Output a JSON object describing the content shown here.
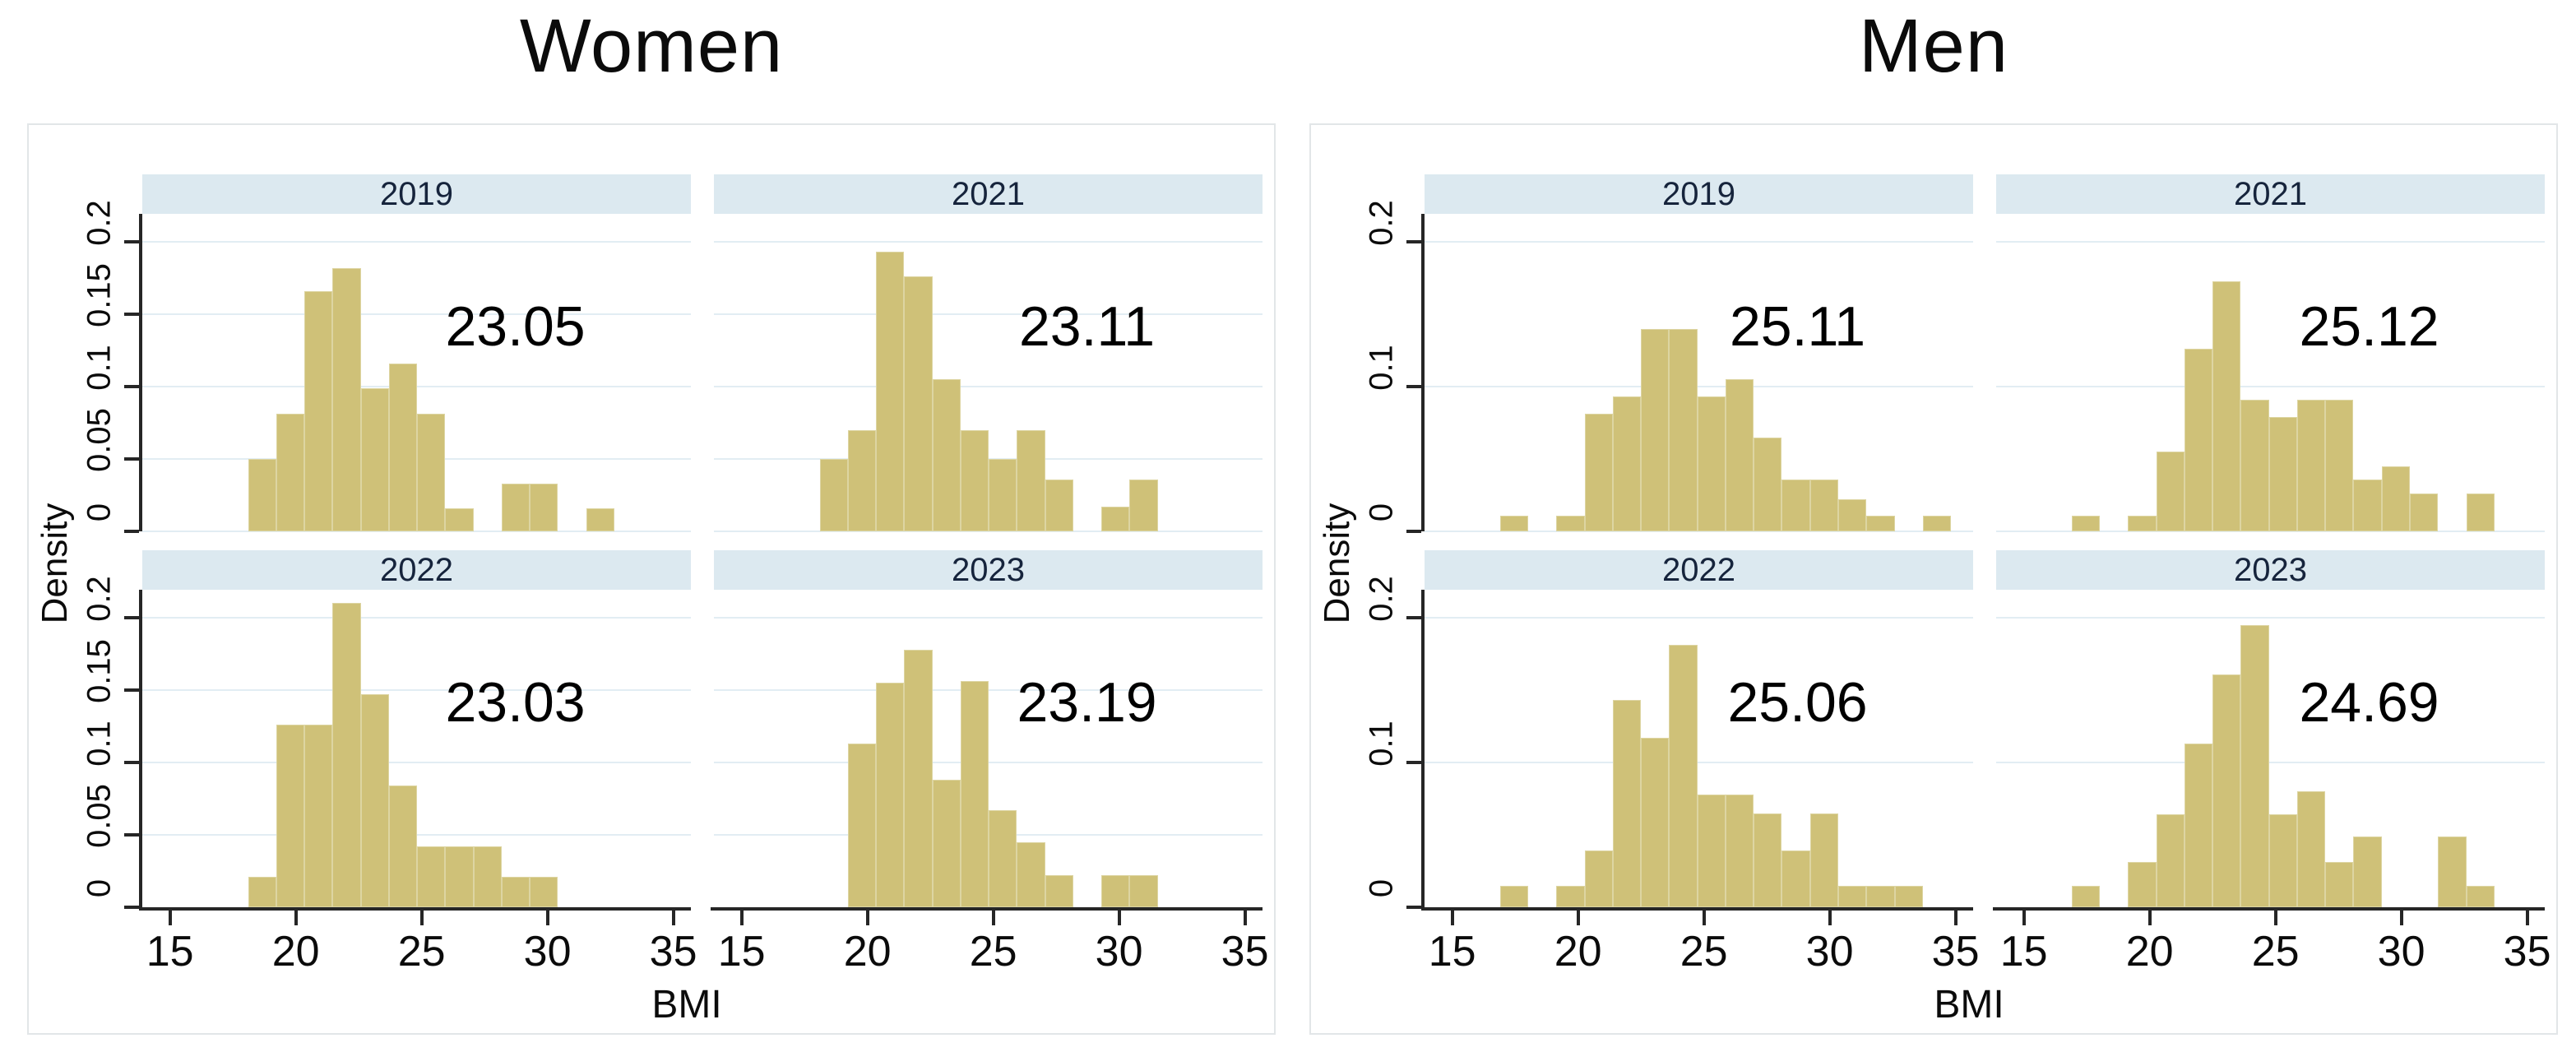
{
  "figure": {
    "ylabel": "Density",
    "xlabel": "BMI",
    "bar_color": "#cfc178",
    "header_color": "#dce9f0",
    "gridline_color": "#e2edf3",
    "axis_color": "#262626"
  },
  "groups": [
    {
      "title": "Women",
      "y_tick_labels": [
        "0",
        "0.05",
        "0.1",
        "0.15",
        "0.2"
      ],
      "y_tick_values": [
        0,
        0.05,
        0.1,
        0.15,
        0.2
      ],
      "gridlines": [
        0.05,
        0.1,
        0.15,
        0.2
      ]
    },
    {
      "title": "Men",
      "y_tick_labels": [
        "0",
        "0.1",
        "0.2"
      ],
      "y_tick_values": [
        0,
        0.1,
        0.2
      ],
      "gridlines": [
        0.1,
        0.2
      ]
    }
  ],
  "x_axis": {
    "tick_labels": [
      "15",
      "20",
      "25",
      "30",
      "35"
    ],
    "tick_values": [
      15,
      20,
      25,
      30,
      35
    ],
    "range": [
      13.9,
      35.7
    ]
  },
  "y_axis": {
    "label_max": 0.2,
    "display_max": 0.219
  },
  "chart_data": [
    {
      "type": "bar",
      "group": 0,
      "row": 0,
      "col": 0,
      "year": "2019",
      "mean_label": "23.05",
      "mean_value": 23.05,
      "bin_start": 18.1,
      "bin_width": 1.12,
      "densities": [
        0.05,
        0.081,
        0.166,
        0.182,
        0.099,
        0.116,
        0.081,
        0.016,
        0,
        0.033,
        0.033,
        0,
        0.016
      ]
    },
    {
      "type": "bar",
      "group": 0,
      "row": 0,
      "col": 1,
      "year": "2021",
      "mean_label": "23.11",
      "mean_value": 23.11,
      "bin_start": 18.1,
      "bin_width": 1.12,
      "densities": [
        0.05,
        0.07,
        0.193,
        0.176,
        0.105,
        0.07,
        0.05,
        0.07,
        0.036,
        0,
        0.017,
        0.036
      ]
    },
    {
      "type": "bar",
      "group": 0,
      "row": 1,
      "col": 0,
      "year": "2022",
      "mean_label": "23.03",
      "mean_value": 23.03,
      "bin_start": 18.1,
      "bin_width": 1.12,
      "densities": [
        0.021,
        0.126,
        0.126,
        0.21,
        0.147,
        0.084,
        0.042,
        0.042,
        0.042,
        0.021,
        0.021
      ]
    },
    {
      "type": "bar",
      "group": 0,
      "row": 1,
      "col": 1,
      "year": "2023",
      "mean_label": "23.19",
      "mean_value": 23.19,
      "bin_start": 19.22,
      "bin_width": 1.12,
      "densities": [
        0.113,
        0.155,
        0.178,
        0.088,
        0.156,
        0.067,
        0.045,
        0.022,
        0,
        0.022,
        0.022
      ]
    },
    {
      "type": "bar",
      "group": 1,
      "row": 0,
      "col": 0,
      "year": "2019",
      "mean_label": "25.11",
      "mean_value": 25.11,
      "bin_start": 16.9,
      "bin_width": 1.12,
      "densities": [
        0.011,
        0,
        0.011,
        0.081,
        0.093,
        0.14,
        0.14,
        0.093,
        0.105,
        0.065,
        0.036,
        0.036,
        0.022,
        0.011,
        0,
        0.011
      ]
    },
    {
      "type": "bar",
      "group": 1,
      "row": 0,
      "col": 1,
      "year": "2021",
      "mean_label": "25.12",
      "mean_value": 25.12,
      "bin_start": 16.9,
      "bin_width": 1.12,
      "densities": [
        0.011,
        0,
        0.011,
        0.055,
        0.126,
        0.173,
        0.091,
        0.079,
        0.091,
        0.091,
        0.036,
        0.045,
        0.026,
        0,
        0.026
      ]
    },
    {
      "type": "bar",
      "group": 1,
      "row": 1,
      "col": 0,
      "year": "2022",
      "mean_label": "25.06",
      "mean_value": 25.06,
      "bin_start": 16.9,
      "bin_width": 1.12,
      "densities": [
        0.015,
        0,
        0.015,
        0.039,
        0.143,
        0.117,
        0.181,
        0.078,
        0.078,
        0.065,
        0.039,
        0.065,
        0.015,
        0.015,
        0.015
      ]
    },
    {
      "type": "bar",
      "group": 1,
      "row": 1,
      "col": 1,
      "year": "2023",
      "mean_label": "24.69",
      "mean_value": 24.69,
      "bin_start": 16.9,
      "bin_width": 1.12,
      "densities": [
        0.015,
        0,
        0.031,
        0.064,
        0.113,
        0.161,
        0.195,
        0.064,
        0.08,
        0.031,
        0.049,
        0,
        0,
        0.049,
        0.015
      ]
    }
  ]
}
